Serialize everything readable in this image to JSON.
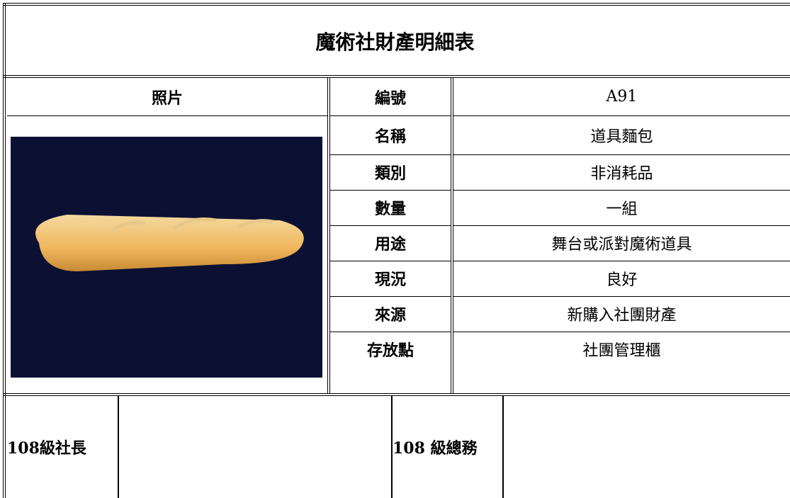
{
  "title": "魔術社財產明細表",
  "table": {
    "photo_label": "照片",
    "rows": [
      [
        "編號",
        "A91"
      ],
      [
        "名稱",
        "道具麵包"
      ],
      [
        "類別",
        "非消耗品"
      ],
      [
        "數量",
        "一組"
      ],
      [
        "用途",
        "舞台或派對魔術道具"
      ],
      [
        "現況",
        "良好"
      ],
      [
        "來源",
        "新購入社團財產"
      ],
      [
        "存放點",
        "社團管理櫃"
      ]
    ]
  },
  "signatures": [
    {
      "label": "108級社長"
    },
    {
      "label": "108 級總務"
    }
  ]
}
